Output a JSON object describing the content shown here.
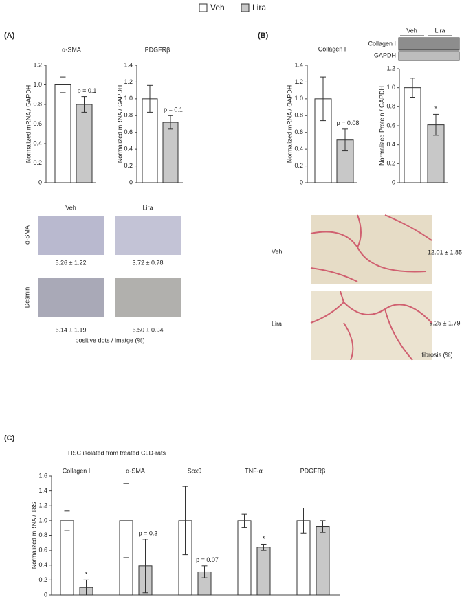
{
  "legend": [
    {
      "name": "Veh",
      "color": "#ffffff"
    },
    {
      "name": "Lira",
      "color": "#c8c8c8"
    }
  ],
  "panels": [
    "(A)",
    "(B)",
    "(C)"
  ],
  "chart_data": [
    {
      "type": "bar",
      "title": "α-SMA",
      "ylabel": "Normalized mRNA / GAPDH",
      "ylim": [
        0,
        1.2
      ],
      "yticks": [
        0,
        0.2,
        0.4,
        0.6,
        0.8,
        {
          "value": 1,
          "label": "1.0"
        },
        1.2
      ],
      "series": [
        {
          "color": "#ffffff",
          "values": [
            1.0
          ],
          "errors": [
            0.08
          ],
          "annotations": [
            null
          ]
        },
        {
          "color": "#c8c8c8",
          "values": [
            0.8
          ],
          "errors": [
            0.08
          ],
          "annotations": [
            "p = 0.1"
          ]
        }
      ]
    },
    {
      "type": "bar",
      "title": "PDGFRβ",
      "ylabel": "Normalized mRNA / GAPDH",
      "ylim": [
        0,
        1.4
      ],
      "yticks": [
        0,
        0.2,
        0.4,
        0.6,
        0.8,
        {
          "value": 1,
          "label": "1.0"
        },
        1.2,
        1.4
      ],
      "series": [
        {
          "color": "#ffffff",
          "values": [
            1.0
          ],
          "errors": [
            0.16
          ],
          "annotations": [
            null
          ]
        },
        {
          "color": "#c8c8c8",
          "values": [
            0.72
          ],
          "errors": [
            0.08
          ],
          "annotations": [
            "p = 0.1"
          ]
        }
      ]
    },
    {
      "type": "bar",
      "title": "Collagen I",
      "ylabel": "Normalized mRNA / GAPDH",
      "ylim": [
        0,
        1.4
      ],
      "yticks": [
        0,
        0.2,
        0.4,
        0.6,
        0.8,
        {
          "value": 1,
          "label": "1.0"
        },
        1.2,
        1.4
      ],
      "series": [
        {
          "color": "#ffffff",
          "values": [
            1.0
          ],
          "errors": [
            0.26
          ],
          "annotations": [
            null
          ]
        },
        {
          "color": "#c8c8c8",
          "values": [
            0.51
          ],
          "errors": [
            0.13
          ],
          "annotations": [
            "p = 0.08"
          ]
        }
      ]
    },
    {
      "type": "bar",
      "ylabel": "Normalized Protein / GAPDH",
      "ylim": [
        0,
        1.2
      ],
      "yticks": [
        0,
        0.2,
        0.4,
        0.6,
        0.8,
        {
          "value": 1,
          "label": "1.0"
        },
        1.2
      ],
      "series": [
        {
          "color": "#ffffff",
          "values": [
            1.0
          ],
          "errors": [
            0.1
          ],
          "annotations": [
            null
          ]
        },
        {
          "color": "#c8c8c8",
          "values": [
            0.61
          ],
          "errors": [
            0.11
          ],
          "annotations": [
            "*"
          ]
        }
      ]
    },
    {
      "type": "bar",
      "title": "HSC isolated from treated CLD-rats",
      "ylabel": "Normalized mRNA / 18S",
      "ylim": [
        0,
        1.6
      ],
      "yticks": [
        0,
        0.2,
        0.4,
        0.6,
        0.8,
        {
          "value": 1,
          "label": "1.0"
        },
        1.2,
        1.4,
        1.6
      ],
      "categories": [
        "Collagen I",
        "α-SMA",
        "Sox9",
        "TNF-α",
        "PDGFRβ"
      ],
      "series": [
        {
          "color": "#ffffff",
          "values": [
            1.0,
            1.0,
            1.0,
            1.0,
            1.0
          ],
          "errors": [
            0.13,
            0.5,
            0.46,
            0.09,
            0.17
          ],
          "annotations": [
            null,
            null,
            null,
            null,
            null
          ]
        },
        {
          "color": "#c8c8c8",
          "values": [
            0.1,
            0.39,
            0.31,
            0.64,
            0.92
          ],
          "errors": [
            0.1,
            0.36,
            0.08,
            0.04,
            0.08
          ],
          "annotations": [
            "*",
            "p = 0.3",
            "p = 0.07",
            "*",
            null
          ]
        }
      ]
    }
  ],
  "histology_a": {
    "columns": [
      "Veh",
      "Lira"
    ],
    "rows": [
      {
        "label": "α-SMA",
        "values": [
          "5.26 ± 1.22",
          "3.72 ± 0.78"
        ]
      },
      {
        "label": "Desmin",
        "values": [
          "6.14 ± 1.19",
          "6.50 ± 0.94"
        ]
      }
    ],
    "caption": "positive dots / imatge (%)"
  },
  "histology_b": {
    "rows": [
      {
        "label": "Veh",
        "value": "12.01 ± 1.85"
      },
      {
        "label": "Lira",
        "value": "9.25 ± 1.79"
      }
    ],
    "caption": "fibrosis (%)"
  },
  "blot": {
    "groups": [
      "Veh",
      "Lira"
    ],
    "bands": [
      "Collagen I",
      "GAPDH"
    ]
  }
}
